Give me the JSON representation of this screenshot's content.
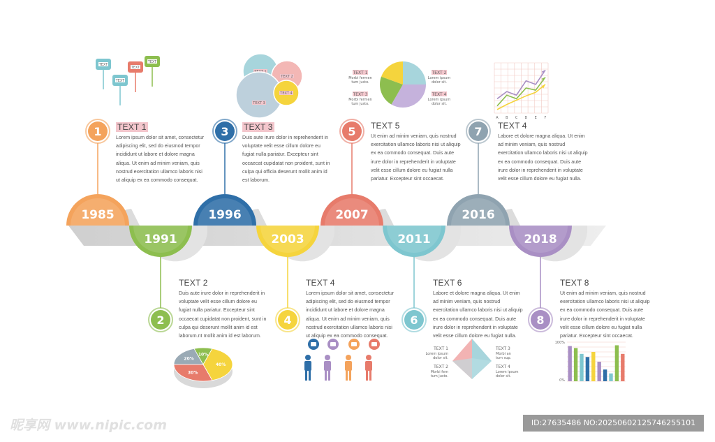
{
  "milestones": [
    {
      "year": "1985",
      "num": "1",
      "title": "TEXT 1",
      "color": "#f4a35c",
      "body": [
        "Lorem ipsum dolor sit amet, consectetur",
        "adipiscing elit, sed do eiusmod tempor",
        "incididunt ut labore et dolore magna",
        "aliqua. Ut enim ad minim veniam, quis",
        "nostrud exercitation ullamco laboris nisi",
        "ut aliquip ex ea commodo consequat."
      ]
    },
    {
      "year": "1991",
      "num": "2",
      "title": "TEXT 2",
      "color": "#8dbe4f",
      "body": [
        "Duis aute irure dolor in reprehenderit in",
        "voluptate velit esse cillum dolore eu",
        "fugiat nulla pariatur. Excepteur sint",
        "occaecat cupidatat non proident, sunt in",
        "culpa qui  deserunt mollit anim id est",
        "laborum.nt mollit anim id est laborum."
      ]
    },
    {
      "year": "1996",
      "num": "3",
      "title": "TEXT 3",
      "color": "#2f6fa8",
      "body": [
        "Duis aute irure dolor in reprehenderit in",
        "voluptate velit esse cillum dolore eu",
        "fugiat nulla pariatur. Excepteur sint",
        "occaecat cupidatat non proident, sunt in",
        "culpa qui officia deserunt mollit anim id",
        "est laborum."
      ]
    },
    {
      "year": "2003",
      "num": "4",
      "title": "TEXT 4",
      "color": "#f5d43d",
      "body": [
        "Lorem ipsum dolor sit amet, consectetur",
        "adipiscing elit, sed do eiusmod tempor",
        "incididunt ut labore et dolore magna",
        "aliqua. Ut enim ad minim veniam, quis",
        "nostrud exercitation ullamco laboris nisi",
        "ut aliquip ex ea commodo consequat."
      ]
    },
    {
      "year": "2007",
      "num": "5",
      "title": "TEXT 5",
      "color": "#e77b6b",
      "body": [
        "Ut enim ad minim veniam, quis nostrud",
        "exercitation ullamco laboris nisi ut aliquip",
        "ex ea commodo consequat. Duis aute",
        "irure dolor in reprehenderit in voluptate",
        "velit esse cillum dolore eu fugiat nulla",
        "pariatur. Excepteur sint occaecat."
      ]
    },
    {
      "year": "2011",
      "num": "6",
      "title": "TEXT 6",
      "color": "#7ec6cf",
      "body": [
        "Labore et dolore magna aliqua. Ut enim",
        "ad minim veniam, quis nostrud",
        "exercitation ullamco laboris nisi ut aliquip",
        "ex ea commodo consequat. Duis aute",
        "irure dolor in reprehenderit in voluptate",
        "velit esse cillum dolore eu fugiat nulla."
      ]
    },
    {
      "year": "2016",
      "num": "7",
      "title": "TEXT 4",
      "color": "#8fa3b0",
      "body": [
        "Labore et dolore magna aliqua. Ut enim",
        "ad minim veniam, quis nostrud",
        "exercitation ullamco laboris nisi ut aliquip",
        "ex ea commodo consequat. Duis aute",
        "irure dolor in reprehenderit in voluptate",
        "velit esse cillum dolore eu fugiat nulla."
      ]
    },
    {
      "year": "2018",
      "num": "8",
      "title": "TEXT 8",
      "color": "#a98fc4",
      "body": [
        "Ut enim ad minim veniam, quis nostrud",
        "exercitation ullamco laboris nisi ut aliquip",
        "ex ea commodo consequat. Duis aute",
        "irure dolor in reprehenderit in voluptate",
        "velit esse cillum dolore eu fugiat nulla",
        "pariatur. Excepteur sint occaecat."
      ]
    }
  ],
  "pie_chart": {
    "labels": [
      "20%",
      "10%",
      "40%",
      "30%"
    ],
    "colors": [
      "#9aaab5",
      "#8dbe4f",
      "#f5d43d",
      "#e77b6b"
    ]
  },
  "pie_top": {
    "labels": [
      "TEXT 1",
      "TEXT 2",
      "TEXT 3",
      "TEXT 4"
    ],
    "sub": [
      "Morbi fermen",
      "tum justo.",
      "Lorem ipsum",
      "dolor sit."
    ]
  },
  "pyramid": {
    "labels": [
      "TEXT 1",
      "TEXT 2",
      "TEXT 3",
      "TEXT 4"
    ],
    "sub": [
      "Lorem ipsum",
      "dolor sit.",
      "Morbi fem",
      "tum justo.",
      "Morbi an",
      "tum sup.",
      "Lorem ipsum",
      "dolor sit."
    ]
  },
  "bubbles": {
    "labels": [
      "TEXT 1",
      "TEXT 2",
      "TEXT 3",
      "TEXT 4"
    ]
  },
  "tags": {
    "labels": [
      "TEXT",
      "TEXT",
      "TEXT",
      "TEXT"
    ]
  },
  "bar_chart": {
    "values": [
      90,
      85,
      70,
      62,
      75,
      50,
      30,
      20,
      92,
      70
    ],
    "colors": [
      "#a98fc4",
      "#8dbe4f",
      "#7ec6cf",
      "#2f6fa8",
      "#f5d43d",
      "#a98fc4",
      "#2f6fa8",
      "#7ec6cf",
      "#8dbe4f",
      "#e77b6b"
    ],
    "ymax": "100%",
    "ymin": "0%"
  },
  "line_chart": {
    "xlabels": [
      "A",
      "B",
      "C",
      "D",
      "E",
      "F"
    ],
    "series": [
      [
        2,
        3,
        2.5,
        4.5,
        4,
        6
      ],
      [
        1,
        2.5,
        2,
        3.5,
        3.2,
        5
      ],
      [
        0.5,
        1.2,
        1.8,
        2.4,
        2.9,
        4
      ]
    ],
    "colors": [
      "#a98fc4",
      "#8dbe4f",
      "#f5d43d"
    ]
  },
  "watermark": {
    "left": "昵享网 www.nipic.com",
    "right": "ID:27635486 NO:20250602125746255101"
  }
}
